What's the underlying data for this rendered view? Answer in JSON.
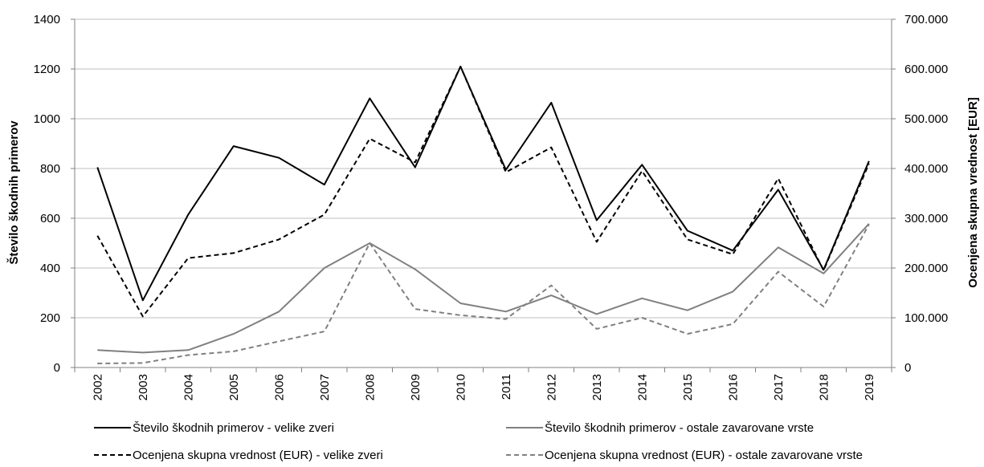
{
  "chart_data": {
    "type": "line",
    "x": [
      "2002",
      "2003",
      "2004",
      "2005",
      "2006",
      "2007",
      "2008",
      "2009",
      "2010",
      "2011",
      "2012",
      "2013",
      "2014",
      "2015",
      "2016",
      "2017",
      "2018",
      "2019"
    ],
    "y_left": {
      "label": "Število škodnih primerov",
      "ylim": [
        0,
        1400
      ],
      "ticks": [
        0,
        200,
        400,
        600,
        800,
        1000,
        1200,
        1400
      ],
      "tick_labels": [
        "0",
        "200",
        "400",
        "600",
        "800",
        "1000",
        "1200",
        "1400"
      ]
    },
    "y_right": {
      "label": "Ocenjena skupna vrednost [EUR]",
      "ylim": [
        0,
        700000
      ],
      "ticks": [
        0,
        100000,
        200000,
        300000,
        400000,
        500000,
        600000,
        700000
      ],
      "tick_labels": [
        "0",
        "100.000",
        "200.000",
        "300.000",
        "400.000",
        "500.000",
        "600.000",
        "700.000"
      ]
    },
    "grid": true,
    "legend_position": "bottom",
    "series": [
      {
        "name": "Število škodnih primerov - velike zveri",
        "axis": "left",
        "color": "#000000",
        "dashed": false,
        "values": [
          805,
          270,
          615,
          890,
          843,
          735,
          1082,
          805,
          1210,
          795,
          1065,
          592,
          815,
          550,
          470,
          715,
          393,
          830
        ]
      },
      {
        "name": "Število škodnih primerov - ostale zavarovane vrste",
        "axis": "left",
        "color": "#808080",
        "dashed": false,
        "values": [
          70,
          60,
          70,
          135,
          225,
          400,
          500,
          395,
          258,
          225,
          290,
          215,
          278,
          230,
          305,
          483,
          378,
          578
        ]
      },
      {
        "name": "Ocenjena skupna vrednost (EUR) - velike zveri",
        "axis": "right",
        "color": "#000000",
        "dashed": true,
        "values": [
          265000,
          102500,
          220000,
          230000,
          257500,
          307500,
          460000,
          412500,
          605000,
          392500,
          442500,
          252500,
          395000,
          257500,
          227500,
          380000,
          195000,
          410000
        ]
      },
      {
        "name": "Ocenjena skupna vrednost (EUR) - ostale zavarovane vrste",
        "axis": "right",
        "color": "#808080",
        "dashed": true,
        "values": [
          8000,
          9000,
          25000,
          32500,
          52500,
          72500,
          250000,
          117500,
          105000,
          97500,
          165000,
          77500,
          100000,
          67500,
          87500,
          192500,
          122500,
          287500
        ]
      }
    ]
  }
}
